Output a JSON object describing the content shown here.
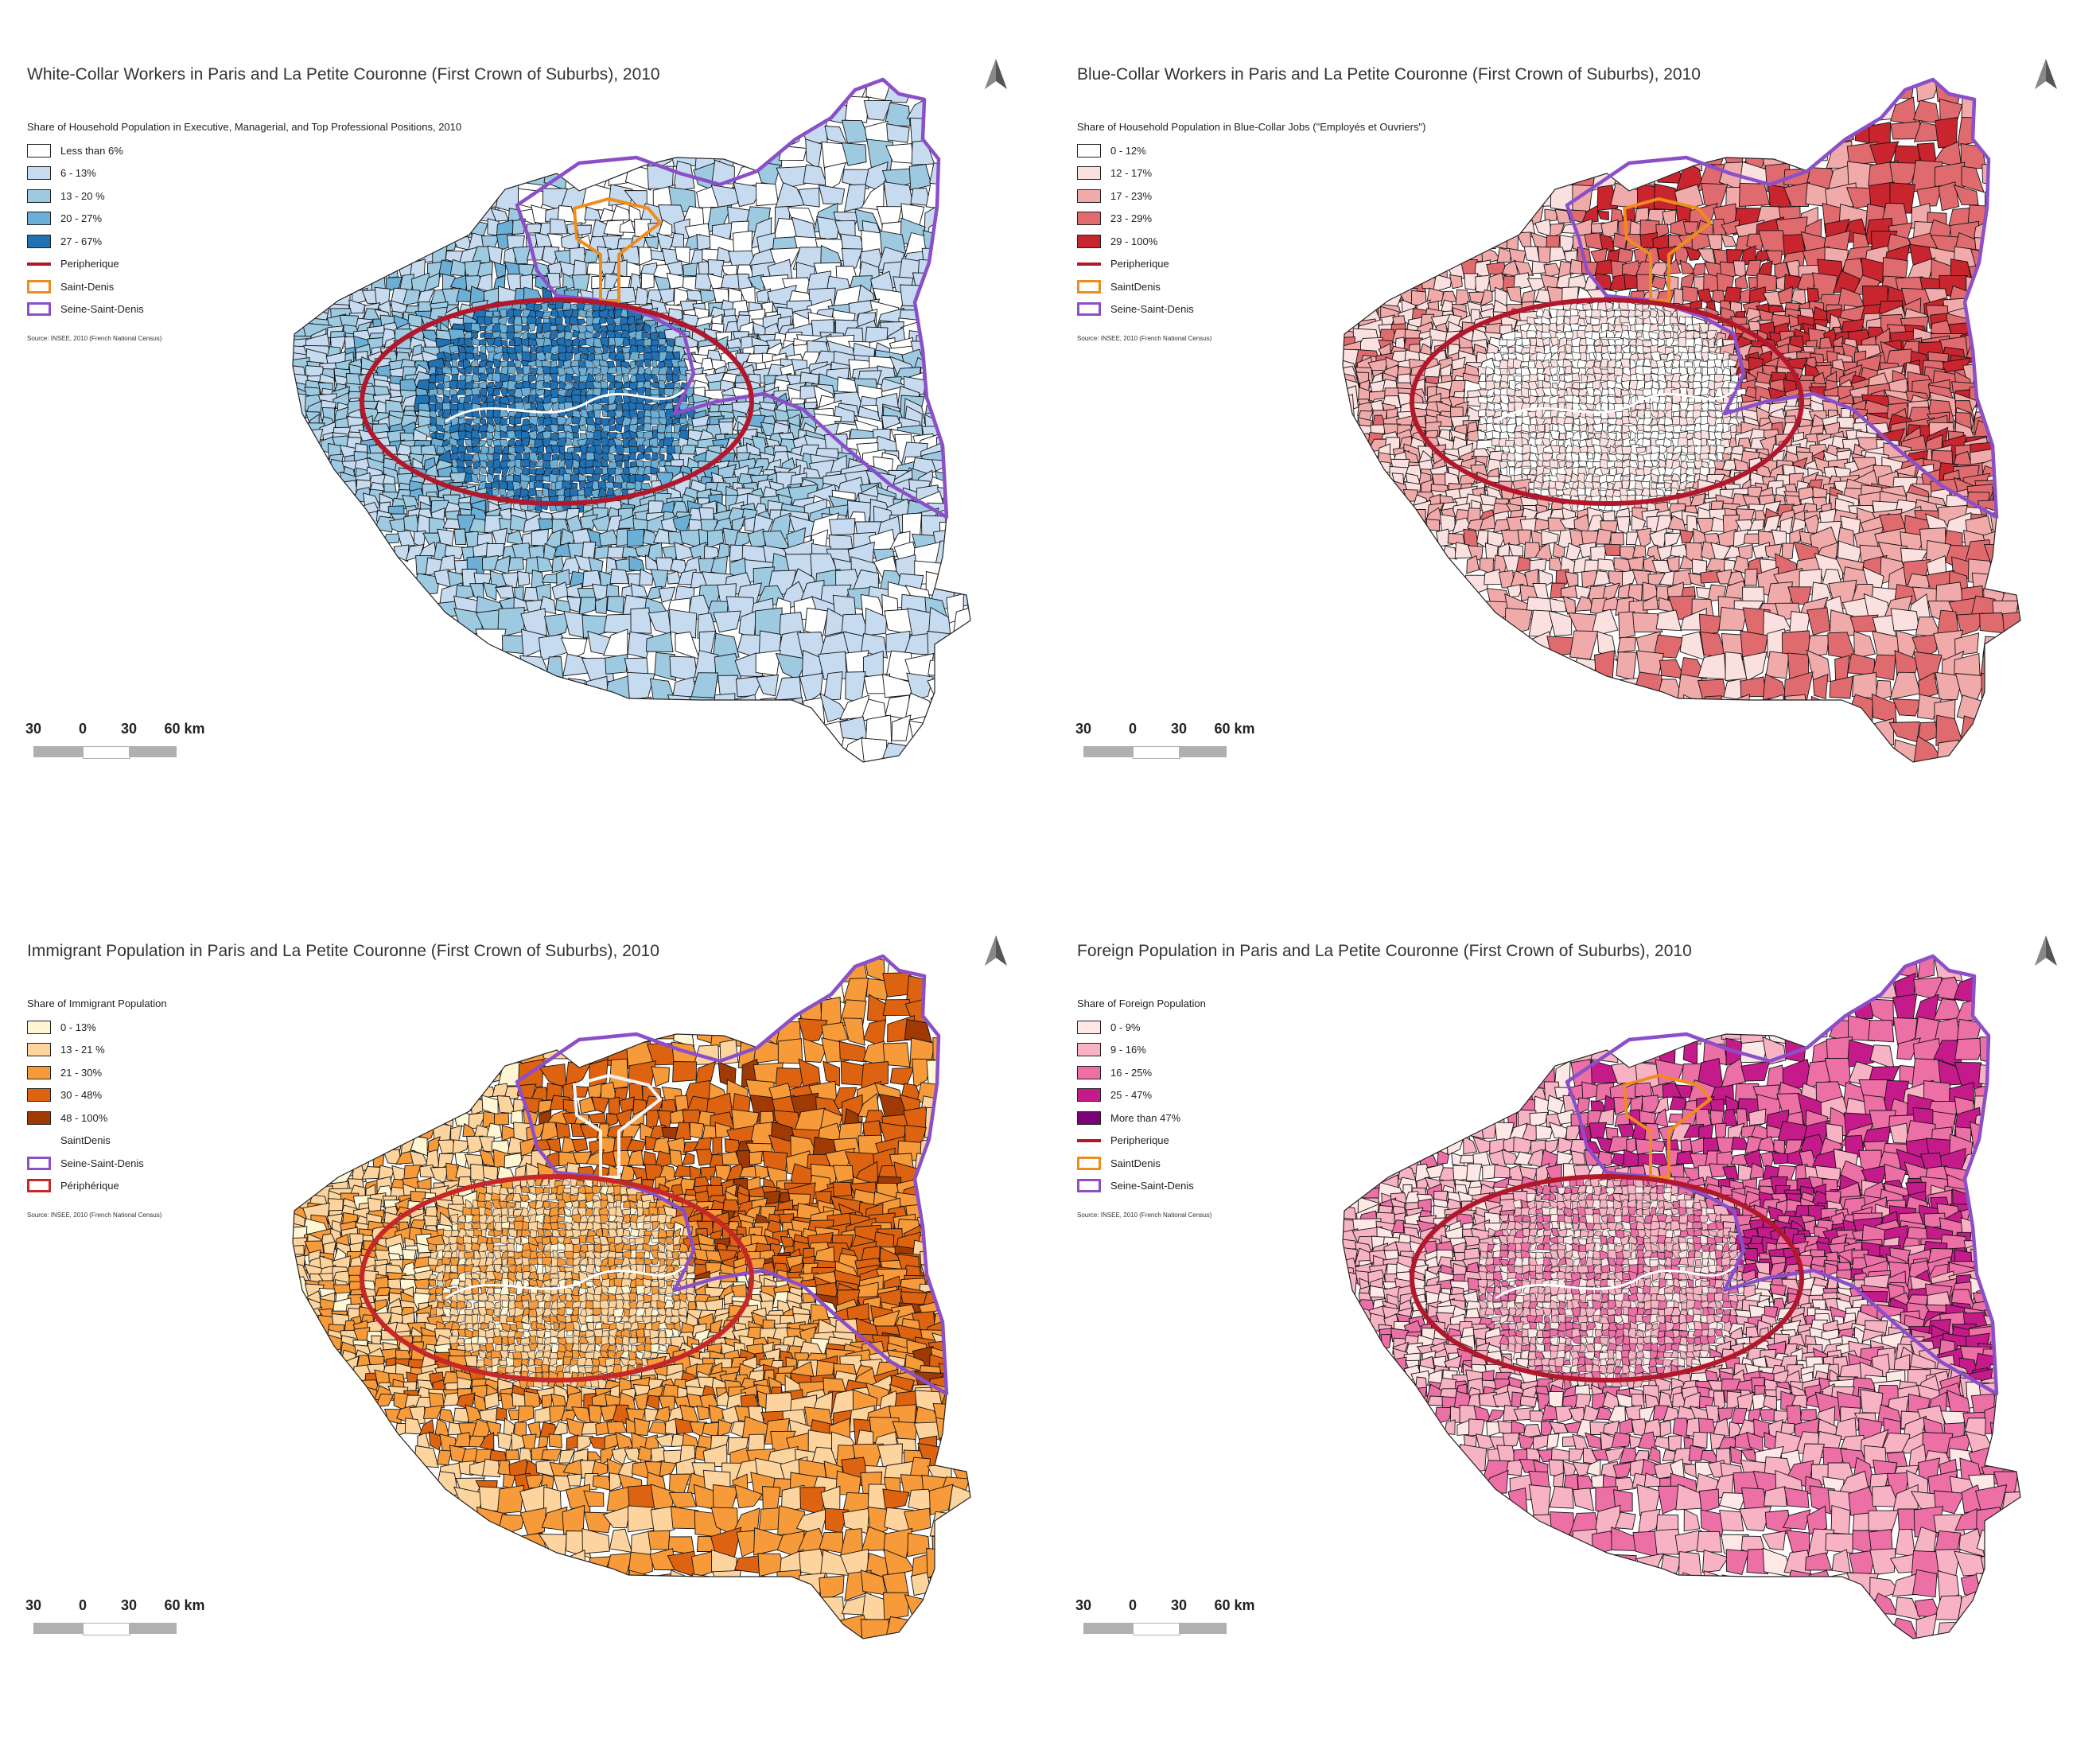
{
  "panels": [
    {
      "id": "white-collar",
      "title": "White-Collar Workers in Paris and La Petite Couronne (First Crown of Suburbs), 2010",
      "legend_title": "Share of Household Population in Executive, Managerial, and Top Professional Positions, 2010",
      "palette": [
        "#ffffff",
        "#c6dbef",
        "#9ecae1",
        "#6baed6",
        "#2171b5"
      ],
      "bias": 1.2,
      "items": [
        {
          "kind": "fill",
          "label": "Less than 6%",
          "color": "#ffffff"
        },
        {
          "kind": "fill",
          "label": "6 - 13%",
          "color": "#c6dbef"
        },
        {
          "kind": "fill",
          "label": "13 - 20 %",
          "color": "#9ecae1"
        },
        {
          "kind": "fill",
          "label": "20 - 27%",
          "color": "#6baed6"
        },
        {
          "kind": "fill",
          "label": "27 - 67%",
          "color": "#2171b5"
        },
        {
          "kind": "line",
          "label": "Peripherique",
          "color": "#b2182b"
        },
        {
          "kind": "outline",
          "label": "Saint-Denis",
          "color": "#f08c1c"
        },
        {
          "kind": "outline",
          "label": "Seine-Saint-Denis",
          "color": "#8a4fc9"
        }
      ],
      "source": "Source: INSEE, 2010 (French National Census)",
      "saint_denis_color": "#f08c1c",
      "peripherique_color": "#b2182b",
      "ssd_color": "#8a4fc9"
    },
    {
      "id": "blue-collar",
      "title": "Blue-Collar Workers in Paris and La Petite Couronne (First Crown of Suburbs), 2010",
      "legend_title": "Share of Household Population in Blue-Collar Jobs (\"Employés et Ouvriers\")",
      "palette": [
        "#ffffff",
        "#fbe0e0",
        "#f1aaaa",
        "#e06b6e",
        "#c9252e"
      ],
      "bias": 0.6,
      "items": [
        {
          "kind": "fill",
          "label": "0 - 12%",
          "color": "#ffffff"
        },
        {
          "kind": "fill",
          "label": "12 - 17%",
          "color": "#fbe0e0"
        },
        {
          "kind": "fill",
          "label": "17 - 23%",
          "color": "#f1aaaa"
        },
        {
          "kind": "fill",
          "label": "23 - 29%",
          "color": "#e06b6e"
        },
        {
          "kind": "fill",
          "label": "29 - 100%",
          "color": "#c9252e"
        },
        {
          "kind": "line",
          "label": "Peripherique",
          "color": "#b2182b"
        },
        {
          "kind": "outline",
          "label": "SaintDenis",
          "color": "#f08c1c"
        },
        {
          "kind": "outline",
          "label": "Seine-Saint-Denis",
          "color": "#8a4fc9"
        }
      ],
      "source": "Source: INSEE, 2010 (French National Census)",
      "saint_denis_color": "#f08c1c",
      "peripherique_color": "#b2182b",
      "ssd_color": "#8a4fc9"
    },
    {
      "id": "immigrant",
      "title": "Immigrant Population in Paris and La Petite Couronne (First Crown of Suburbs), 2010",
      "legend_title": "Share of Immigrant Population",
      "palette": [
        "#fff7d4",
        "#fdd49e",
        "#f79a3a",
        "#dd6310",
        "#9f3a05"
      ],
      "bias": 0.7,
      "items": [
        {
          "kind": "fill",
          "label": "0 - 13%",
          "color": "#fff7d4"
        },
        {
          "kind": "fill",
          "label": "13 - 21 %",
          "color": "#fdd49e"
        },
        {
          "kind": "fill",
          "label": "21 - 30%",
          "color": "#f79a3a"
        },
        {
          "kind": "fill",
          "label": "30 - 48%",
          "color": "#dd6310"
        },
        {
          "kind": "fill",
          "label": "48 - 100%",
          "color": "#9f3a05"
        },
        {
          "kind": "none",
          "label": "SaintDenis",
          "color": "#ffffff"
        },
        {
          "kind": "outline",
          "label": "Seine-Saint-Denis",
          "color": "#8a4fc9"
        },
        {
          "kind": "outline",
          "label": "Périphérique",
          "color": "#c62828"
        }
      ],
      "source": "Source: INSEE, 2010 (French National Census)",
      "saint_denis_color": "#f5f5f5",
      "peripherique_color": "#c62828",
      "ssd_color": "#8a4fc9"
    },
    {
      "id": "foreign",
      "title": "Foreign Population in Paris and La Petite Couronne (First Crown of Suburbs), 2010",
      "legend_title": "Share of Foreign Population",
      "palette": [
        "#fde8e6",
        "#f7b3c4",
        "#ec6fa6",
        "#c51b8a",
        "#7a0177"
      ],
      "bias": 0.75,
      "items": [
        {
          "kind": "fill",
          "label": "0 - 9%",
          "color": "#fde8e6"
        },
        {
          "kind": "fill",
          "label": "9 - 16%",
          "color": "#f7b3c4"
        },
        {
          "kind": "fill",
          "label": "16 - 25%",
          "color": "#ec6fa6"
        },
        {
          "kind": "fill",
          "label": "25 - 47%",
          "color": "#c51b8a"
        },
        {
          "kind": "fill",
          "label": "More than 47%",
          "color": "#7a0177"
        },
        {
          "kind": "line",
          "label": "Peripherique",
          "color": "#b2182b"
        },
        {
          "kind": "outline",
          "label": "SaintDenis",
          "color": "#f08c1c"
        },
        {
          "kind": "outline",
          "label": "Seine-Saint-Denis",
          "color": "#8a4fc9"
        }
      ],
      "source": "Source: INSEE, 2010 (French National Census)",
      "saint_denis_color": "#f08c1c",
      "peripherique_color": "#b2182b",
      "ssd_color": "#8a4fc9"
    }
  ],
  "scale": {
    "labels": [
      "30",
      "0",
      "30",
      "60 km"
    ]
  }
}
